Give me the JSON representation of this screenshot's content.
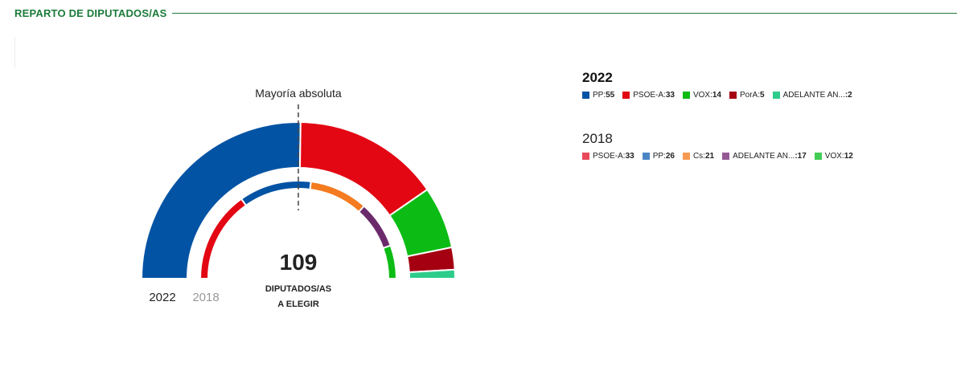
{
  "header": {
    "title": "REPARTO DE DIPUTADOS/AS"
  },
  "chart_data": {
    "type": "pie",
    "subtype": "parliament-hemicycle",
    "total_seats": 109,
    "center_number": "109",
    "center_label_line1": "DIPUTADOS/AS",
    "center_label_line2": "A ELEGIR",
    "majority_label": "Mayoría absoluta",
    "ring_labels": {
      "outer": "2022",
      "inner": "2018"
    },
    "series": [
      {
        "name": "2022",
        "ring": "outer",
        "parties": [
          {
            "name": "PP",
            "seats": 55,
            "color": "#0353a4"
          },
          {
            "name": "PSOE-A",
            "seats": 33,
            "color": "#e30613"
          },
          {
            "name": "VOX",
            "seats": 14,
            "color": "#0cbc14"
          },
          {
            "name": "PorA",
            "seats": 5,
            "color": "#a50011"
          },
          {
            "name": "ADELANTE AN...",
            "seats": 2,
            "color": "#2ecc8a"
          }
        ]
      },
      {
        "name": "2018",
        "ring": "inner",
        "parties": [
          {
            "name": "PSOE-A",
            "seats": 33,
            "color": "#e30613"
          },
          {
            "name": "PP",
            "seats": 26,
            "color": "#0353a4"
          },
          {
            "name": "Cs",
            "seats": 21,
            "color": "#f47b20"
          },
          {
            "name": "ADELANTE AN...",
            "seats": 17,
            "color": "#6b2a6b"
          },
          {
            "name": "VOX",
            "seats": 12,
            "color": "#0cbc14"
          }
        ]
      }
    ]
  },
  "legend": {
    "groups": [
      {
        "year": "2022",
        "items": [
          {
            "label": "PP:",
            "value": "55",
            "color": "#0353a4"
          },
          {
            "label": "PSOE-A:",
            "value": "33",
            "color": "#e30613"
          },
          {
            "label": "VOX:",
            "value": "14",
            "color": "#0cbc14"
          },
          {
            "label": "PorA:",
            "value": "5",
            "color": "#a50011"
          },
          {
            "label": "ADELANTE AN...",
            "value": ":2",
            "color": "#2ecc8a"
          }
        ]
      },
      {
        "year": "2018",
        "items": [
          {
            "label": "PSOE-A:",
            "value": "33",
            "color": "#e8495a"
          },
          {
            "label": "PP:",
            "value": "26",
            "color": "#4a86c6"
          },
          {
            "label": "Cs:",
            "value": "21",
            "color": "#f79a52"
          },
          {
            "label": "ADELANTE AN...",
            "value": ":17",
            "color": "#955a95"
          },
          {
            "label": "VOX:",
            "value": "12",
            "color": "#45cc55"
          }
        ]
      }
    ]
  }
}
